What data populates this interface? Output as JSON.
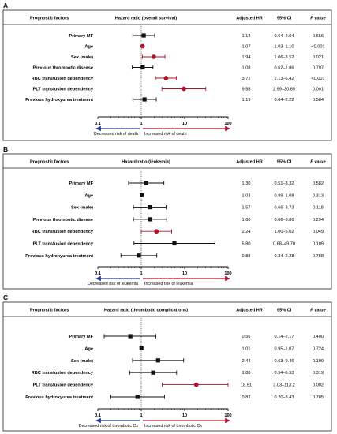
{
  "colors": {
    "black": "#111111",
    "red": "#b0142a",
    "blue": "#1f3a8a",
    "border": "#222222",
    "dotted": "#444444"
  },
  "headers": {
    "factors": "Prognostic factors",
    "adjusted": "Adjusted HR",
    "ci": "95% CI",
    "pvalue": "P value"
  },
  "chart_data": [
    {
      "type": "forest",
      "panel": "A",
      "title": "Hazard ratio (overall survival)",
      "x_scale": "log",
      "xlim": [
        0.1,
        100
      ],
      "x_ticks": [
        "0.1",
        "1",
        "10",
        "100"
      ],
      "arrow_left": "Decreased risk of death",
      "arrow_right": "Increased risk of death",
      "rows": [
        {
          "label": "Primary MF",
          "hr": 1.14,
          "lo": 0.64,
          "hi": 2.04,
          "hr_text": "1.14",
          "ci_text": "0.64–2.04",
          "p_text": "0.656",
          "significant": false
        },
        {
          "label": "Age",
          "hr": 1.07,
          "lo": 1.03,
          "hi": 1.1,
          "hr_text": "1.07",
          "ci_text": "1.03–1.10",
          "p_text": "<0.001",
          "significant": true
        },
        {
          "label": "Sex (male)",
          "hr": 1.94,
          "lo": 1.06,
          "hi": 3.52,
          "hr_text": "1.94",
          "ci_text": "1.06–3.52",
          "p_text": "0.021",
          "significant": true
        },
        {
          "label": "Previous thrombotic disease",
          "hr": 1.08,
          "lo": 0.62,
          "hi": 1.86,
          "hr_text": "1.08",
          "ci_text": "0.62–1.86",
          "p_text": "0.797",
          "significant": false
        },
        {
          "label": "RBC transfusion dependency",
          "hr": 3.72,
          "lo": 2.13,
          "hi": 6.42,
          "hr_text": "3.72",
          "ci_text": "2.13–6.42",
          "p_text": "<0.001",
          "significant": true
        },
        {
          "label": "PLT transfusion dependency",
          "hr": 9.58,
          "lo": 2.99,
          "hi": 30.65,
          "hr_text": "9.58",
          "ci_text": "2.99–30.65",
          "p_text": "0.001",
          "significant": true
        },
        {
          "label": "Previous hydroxyurea treatment",
          "hr": 1.19,
          "lo": 0.64,
          "hi": 2.22,
          "hr_text": "1.19",
          "ci_text": "0.64–2.22",
          "p_text": "0.584",
          "significant": false
        }
      ]
    },
    {
      "type": "forest",
      "panel": "B",
      "title": "Hazard ratio (leukemia)",
      "x_scale": "log",
      "xlim": [
        0.1,
        100
      ],
      "x_ticks": [
        "0.1",
        "1",
        "10",
        "100"
      ],
      "arrow_left": "Decreased risk of leukemia",
      "arrow_right": "Increased risk of leukemia",
      "rows": [
        {
          "label": "Primary MF",
          "hr": 1.3,
          "lo": 0.51,
          "hi": 3.32,
          "hr_text": "1.30",
          "ci_text": "0.51–3.32",
          "p_text": "0.582",
          "significant": false
        },
        {
          "label": "Age",
          "hr": 1.03,
          "lo": 0.99,
          "hi": 1.08,
          "hr_text": "1.03",
          "ci_text": "0.99–1.08",
          "p_text": "0.313",
          "significant": false
        },
        {
          "label": "Sex (male)",
          "hr": 1.57,
          "lo": 0.66,
          "hi": 3.73,
          "hr_text": "1.57",
          "ci_text": "0.66–3.73",
          "p_text": "0.118",
          "significant": false
        },
        {
          "label": "Previous thrombotic disease",
          "hr": 1.6,
          "lo": 0.66,
          "hi": 3.86,
          "hr_text": "1.60",
          "ci_text": "0.66–3.86",
          "p_text": "0.294",
          "significant": false
        },
        {
          "label": "RBC transfusion dependency",
          "hr": 2.24,
          "lo": 1.0,
          "hi": 5.02,
          "hr_text": "2.24",
          "ci_text": "1.00–5.02",
          "p_text": "0.049",
          "significant": true
        },
        {
          "label": "PLT transfusion dependency",
          "hr": 5.8,
          "lo": 0.68,
          "hi": 49.7,
          "hr_text": "5.80",
          "ci_text": "0.68–49.70",
          "p_text": "0.109",
          "significant": false
        },
        {
          "label": "Previous hydroxyurea treatment",
          "hr": 0.88,
          "lo": 0.34,
          "hi": 2.28,
          "hr_text": "0.88",
          "ci_text": "0.34–2.28",
          "p_text": "0.788",
          "significant": false
        }
      ]
    },
    {
      "type": "forest",
      "panel": "C",
      "title": "Hazard ratio (thrombotic complications)",
      "x_scale": "log",
      "xlim": [
        0.1,
        100
      ],
      "x_ticks": [
        "0.1",
        "1",
        "10",
        "100"
      ],
      "arrow_left": "Decreased risk of thrombotic Cx",
      "arrow_right": "Increased risk of thrombotic Cx",
      "rows": [
        {
          "label": "Primary MF",
          "hr": 0.56,
          "lo": 0.14,
          "hi": 2.17,
          "hr_text": "0.56",
          "ci_text": "0.14–2.17",
          "p_text": "0.400",
          "significant": false
        },
        {
          "label": "Age",
          "hr": 1.01,
          "lo": 0.95,
          "hi": 1.07,
          "hr_text": "1.01",
          "ci_text": "0.95–1.07",
          "p_text": "0.724",
          "significant": false
        },
        {
          "label": "Sex (male)",
          "hr": 2.44,
          "lo": 0.63,
          "hi": 9.46,
          "hr_text": "2.44",
          "ci_text": "0.63–9.46",
          "p_text": "0.199",
          "significant": false
        },
        {
          "label": "RBC transfusion dependency",
          "hr": 1.88,
          "lo": 0.54,
          "hi": 6.53,
          "hr_text": "1.88",
          "ci_text": "0.54–6.53",
          "p_text": "0.319",
          "significant": false
        },
        {
          "label": "PLT transfusion dependency",
          "hr": 18.51,
          "lo": 3.03,
          "hi": 113.2,
          "hr_text": "18.51",
          "ci_text": "3.03–113.2",
          "p_text": "0.002",
          "significant": true
        },
        {
          "label": "Previous hydroxyurea treatment",
          "hr": 0.82,
          "lo": 0.2,
          "hi": 3.43,
          "hr_text": "0.82",
          "ci_text": "0.20–3.43",
          "p_text": "0.785",
          "significant": false
        }
      ]
    }
  ]
}
